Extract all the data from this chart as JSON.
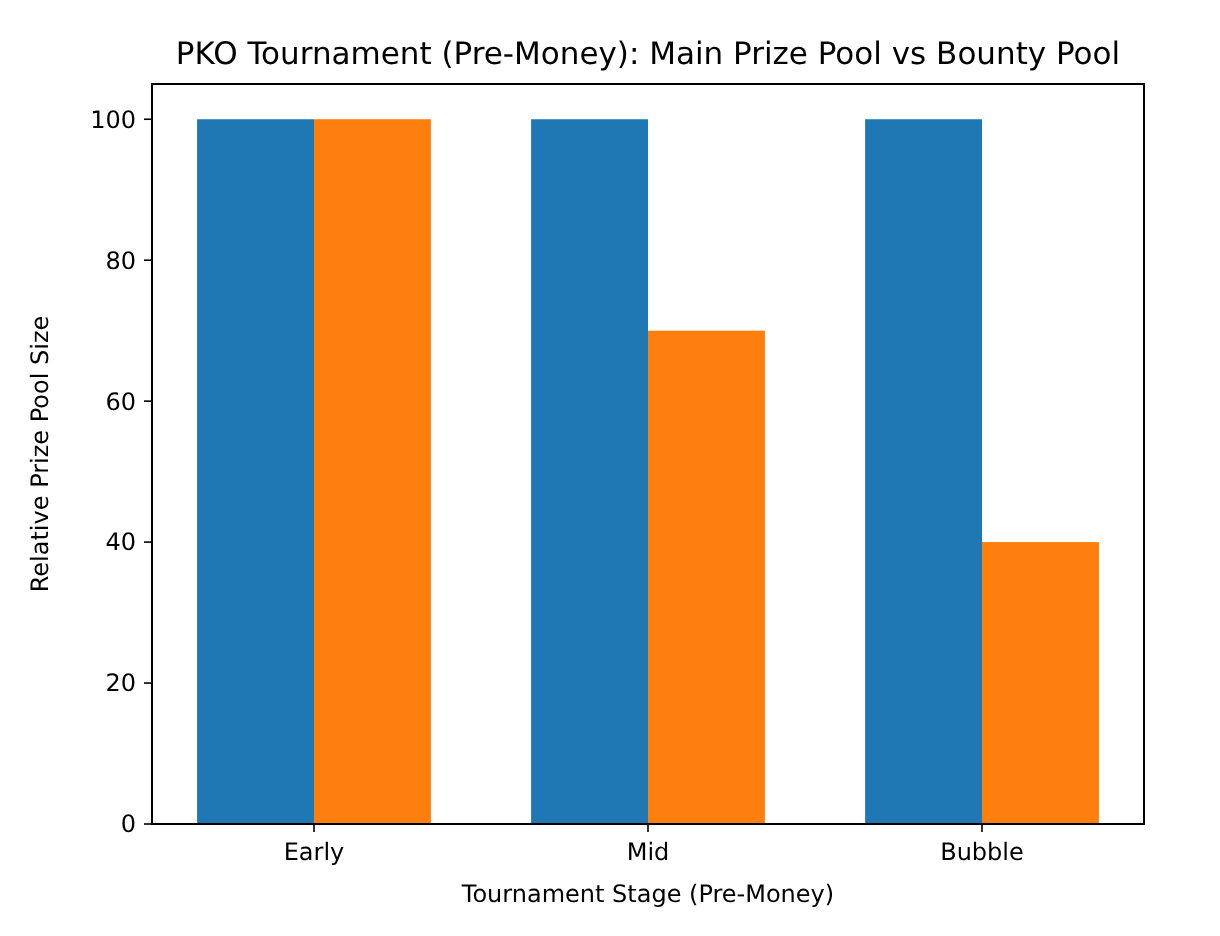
{
  "chart_data": {
    "type": "bar",
    "title": "PKO Tournament (Pre-Money): Main Prize Pool vs Bounty Pool",
    "xlabel": "Tournament Stage (Pre-Money)",
    "ylabel": "Relative Prize Pool Size",
    "categories": [
      "Early",
      "Mid",
      "Bubble"
    ],
    "series": [
      {
        "color": "#1f77b4",
        "values": [
          100,
          100,
          100
        ]
      },
      {
        "color": "#ff7f0e",
        "values": [
          100,
          70,
          40
        ]
      }
    ],
    "ylim": [
      0,
      105
    ],
    "yticks": [
      0,
      20,
      40,
      60,
      80,
      100
    ],
    "grid": false
  }
}
